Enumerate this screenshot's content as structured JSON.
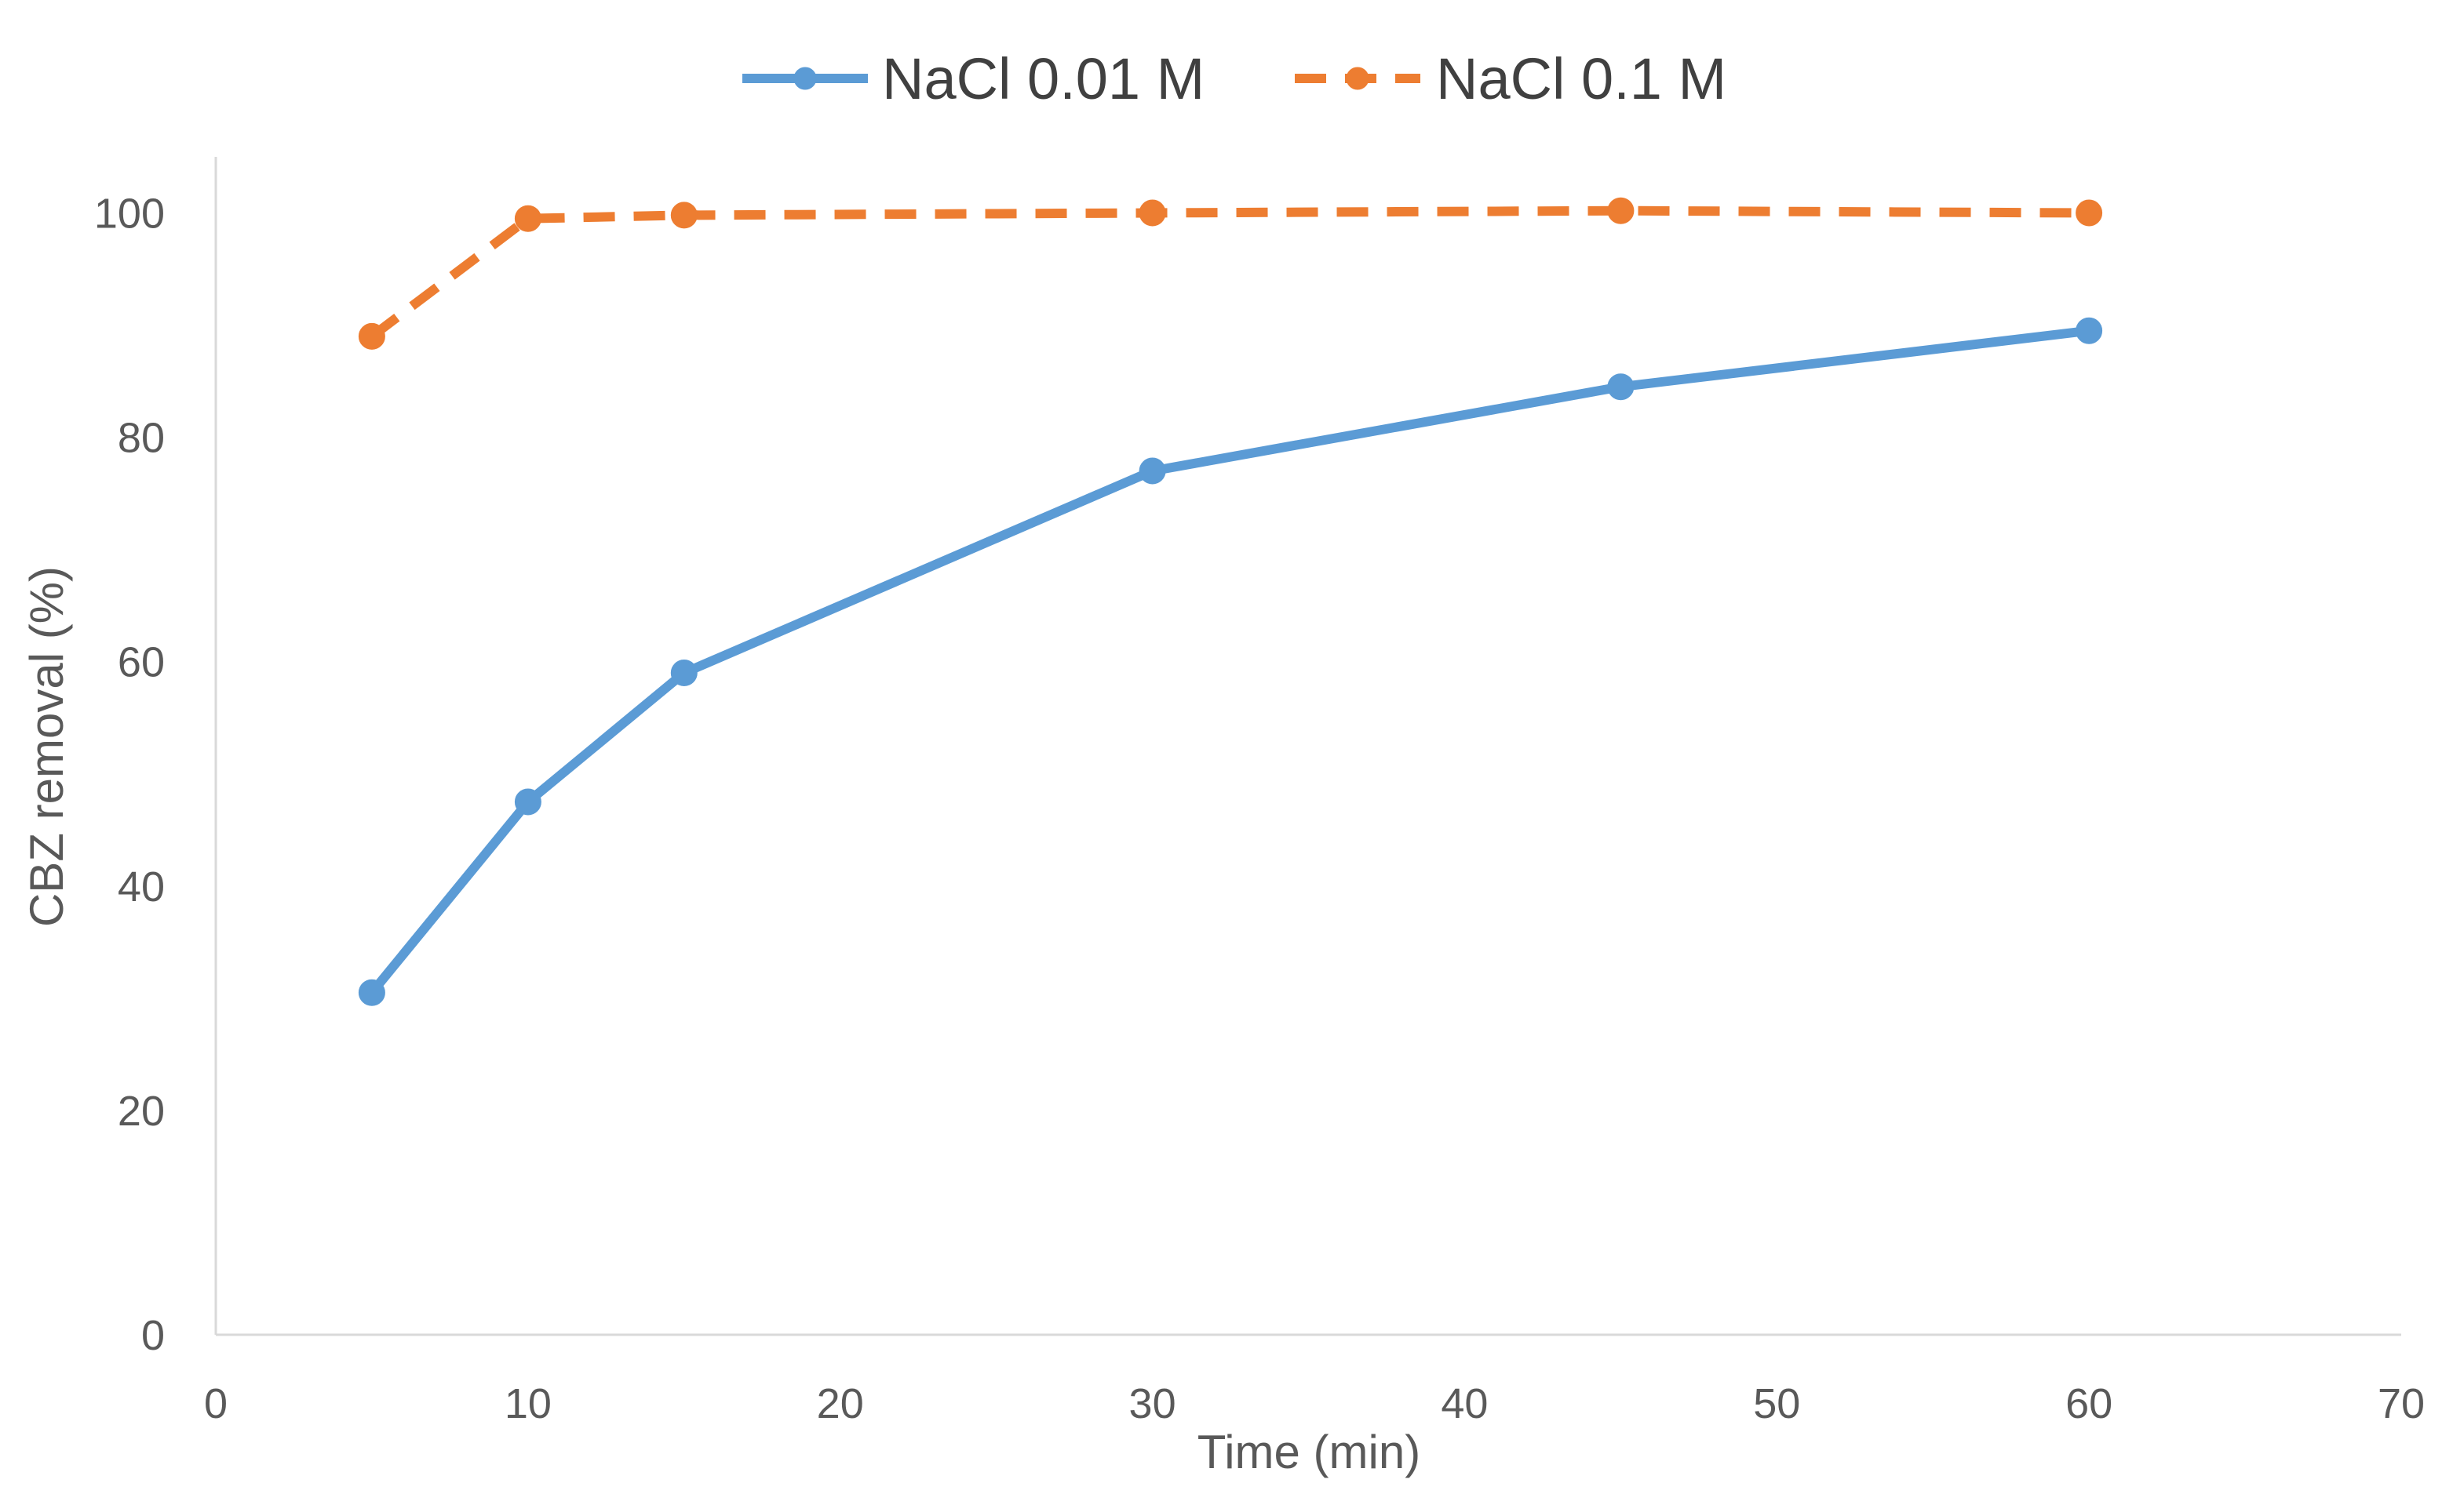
{
  "chart_data": {
    "type": "line",
    "title": "",
    "xlabel": "Time (min)",
    "ylabel": "CBZ removal (%)",
    "xlim": [
      0,
      70
    ],
    "ylim": [
      0,
      105
    ],
    "xticks": [
      0,
      10,
      20,
      30,
      40,
      50,
      60,
      70
    ],
    "yticks": [
      0,
      20,
      40,
      60,
      80,
      100
    ],
    "grid": false,
    "legend_position": "top-center",
    "series": [
      {
        "name": "NaCl 0.01 M",
        "color": "#5B9BD5",
        "line_style": "solid",
        "x": [
          5,
          10,
          15,
          30,
          45,
          60
        ],
        "y": [
          30.5,
          47.5,
          59,
          77,
          84.5,
          89.5
        ]
      },
      {
        "name": "NaCl 0.1 M",
        "color": "#ED7D31",
        "line_style": "dashed",
        "x": [
          5,
          10,
          15,
          30,
          45,
          60
        ],
        "y": [
          89,
          99.5,
          99.8,
          100,
          100.2,
          100
        ]
      }
    ]
  }
}
